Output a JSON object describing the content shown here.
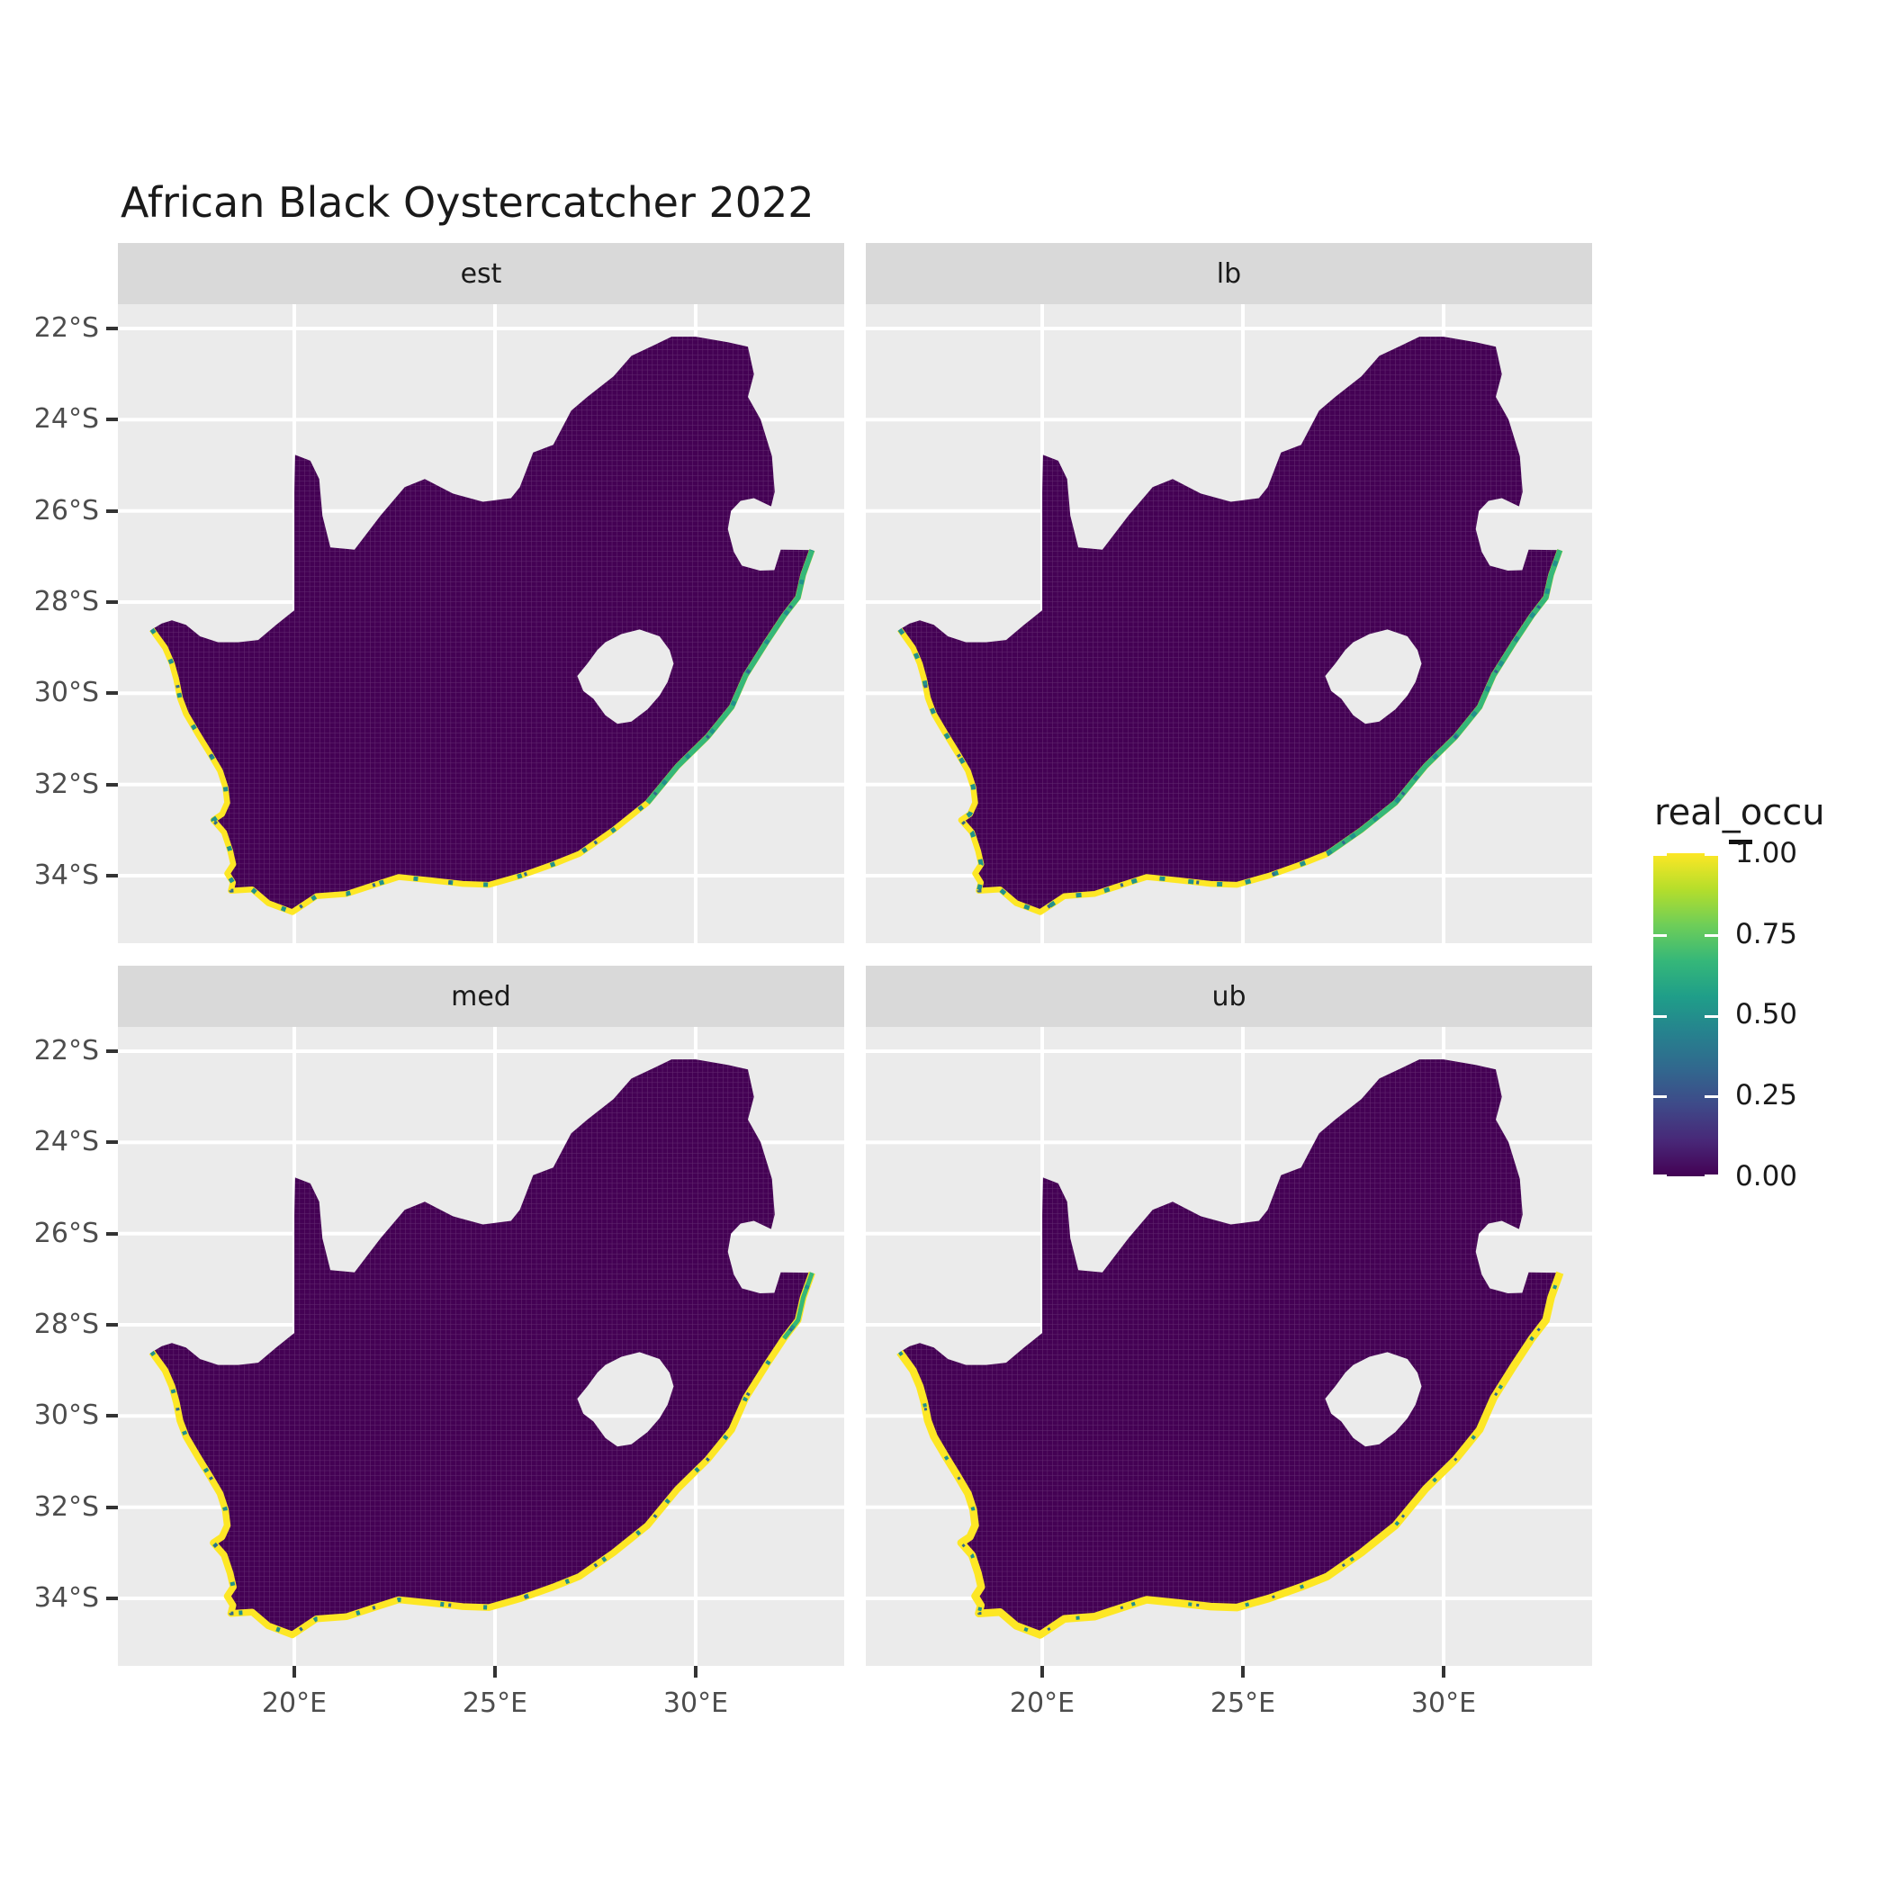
{
  "title": "African Black Oystercatcher 2022",
  "legend": {
    "title": "real_occu",
    "labels": [
      "1.00",
      "0.75",
      "0.50",
      "0.25",
      "0.00"
    ]
  },
  "colors": {
    "panel_bg": "#ebebeb",
    "strip_bg": "#d9d9d9",
    "gridline": "#ffffff",
    "axis_text": "#4d4d4d",
    "tick_mark": "#333333",
    "raster_zero": "#440154",
    "raster_max": "#fde725",
    "coast_green": "#35b779",
    "coast_teal": "#21918c",
    "coast_blue": "#31688e",
    "viridis_stops": [
      "#440154",
      "#482878",
      "#3e4a89",
      "#31688e",
      "#26828e",
      "#1f9e89",
      "#35b779",
      "#6ece58",
      "#b5de2b",
      "#fde725"
    ]
  },
  "chart_data": {
    "type": "heatmap",
    "title": "African Black Oystercatcher 2022",
    "facets": [
      "est",
      "lb",
      "med",
      "ub"
    ],
    "x_ticks": {
      "labels": [
        "20°E",
        "25°E",
        "30°E"
      ],
      "values": [
        20,
        25,
        30
      ]
    },
    "y_ticks": {
      "labels": [
        "22°S",
        "24°S",
        "26°S",
        "28°S",
        "30°S",
        "32°S",
        "34°S"
      ],
      "values": [
        22,
        24,
        26,
        28,
        30,
        32,
        34
      ]
    },
    "xlim_lon": [
      15.605,
      33.7
    ],
    "ylim_latS": [
      21.467,
      35.48
    ],
    "grid": true,
    "legend_position": "right",
    "legend_title": "real_occu",
    "legend_ticks": [
      1.0,
      0.75,
      0.5,
      0.25,
      0.0
    ],
    "colormap": "viridis",
    "value_summary": "Occupancy raster over South Africa: interior cells ~0.00 (dark purple); coastal cells high, up to 1.00 (yellow) with scattered 0.25-0.75 (blue/teal/green) cells; Lesotho and Eswatini are masked (no data).",
    "south_africa_outline": [
      [
        16.45,
        28.6
      ],
      [
        16.78,
        29.0
      ],
      [
        16.95,
        29.35
      ],
      [
        17.06,
        29.7
      ],
      [
        17.15,
        30.1
      ],
      [
        17.3,
        30.45
      ],
      [
        17.6,
        30.9
      ],
      [
        17.88,
        31.3
      ],
      [
        18.15,
        31.7
      ],
      [
        18.28,
        32.05
      ],
      [
        18.33,
        32.4
      ],
      [
        18.2,
        32.65
      ],
      [
        17.98,
        32.78
      ],
      [
        18.25,
        33.05
      ],
      [
        18.4,
        33.45
      ],
      [
        18.48,
        33.75
      ],
      [
        18.33,
        33.95
      ],
      [
        18.47,
        34.15
      ],
      [
        18.42,
        34.33
      ],
      [
        18.95,
        34.3
      ],
      [
        19.35,
        34.6
      ],
      [
        19.95,
        34.8
      ],
      [
        20.55,
        34.45
      ],
      [
        21.3,
        34.4
      ],
      [
        22.0,
        34.2
      ],
      [
        22.6,
        34.03
      ],
      [
        23.4,
        34.1
      ],
      [
        24.2,
        34.18
      ],
      [
        24.85,
        34.2
      ],
      [
        25.65,
        34.0
      ],
      [
        26.45,
        33.75
      ],
      [
        27.1,
        33.52
      ],
      [
        27.95,
        33.0
      ],
      [
        28.8,
        32.4
      ],
      [
        29.55,
        31.6
      ],
      [
        30.3,
        30.95
      ],
      [
        30.9,
        30.3
      ],
      [
        31.25,
        29.6
      ],
      [
        31.75,
        28.9
      ],
      [
        32.2,
        28.3
      ],
      [
        32.55,
        27.9
      ],
      [
        32.68,
        27.4
      ],
      [
        32.9,
        26.86
      ],
      [
        32.12,
        26.85
      ],
      [
        31.96,
        27.3
      ],
      [
        31.6,
        27.31
      ],
      [
        31.15,
        27.2
      ],
      [
        30.95,
        26.9
      ],
      [
        30.8,
        26.4
      ],
      [
        30.88,
        26.0
      ],
      [
        31.12,
        25.78
      ],
      [
        31.45,
        25.72
      ],
      [
        31.88,
        25.9
      ],
      [
        31.97,
        25.58
      ],
      [
        31.9,
        24.8
      ],
      [
        31.62,
        24.0
      ],
      [
        31.3,
        23.5
      ],
      [
        31.45,
        23.0
      ],
      [
        31.3,
        22.4
      ],
      [
        30.8,
        22.3
      ],
      [
        30.0,
        22.18
      ],
      [
        29.4,
        22.18
      ],
      [
        29.0,
        22.35
      ],
      [
        28.4,
        22.6
      ],
      [
        27.95,
        23.05
      ],
      [
        27.3,
        23.5
      ],
      [
        26.9,
        23.8
      ],
      [
        26.45,
        24.55
      ],
      [
        25.95,
        24.72
      ],
      [
        25.62,
        25.48
      ],
      [
        25.4,
        25.72
      ],
      [
        24.7,
        25.8
      ],
      [
        23.95,
        25.62
      ],
      [
        23.25,
        25.3
      ],
      [
        22.75,
        25.48
      ],
      [
        22.15,
        26.1
      ],
      [
        21.5,
        26.85
      ],
      [
        20.9,
        26.8
      ],
      [
        20.7,
        26.1
      ],
      [
        20.62,
        25.3
      ],
      [
        20.4,
        24.9
      ],
      [
        20.02,
        24.77
      ],
      [
        20.0,
        25.6
      ],
      [
        20.0,
        26.6
      ],
      [
        20.0,
        27.4
      ],
      [
        20.0,
        28.18
      ],
      [
        19.55,
        28.5
      ],
      [
        19.1,
        28.83
      ],
      [
        18.6,
        28.88
      ],
      [
        18.1,
        28.88
      ],
      [
        17.65,
        28.75
      ],
      [
        17.3,
        28.5
      ],
      [
        16.95,
        28.4
      ],
      [
        16.7,
        28.47
      ]
    ],
    "coast_end_index": 42,
    "lesotho_hole": [
      [
        27.05,
        29.62
      ],
      [
        27.3,
        29.35
      ],
      [
        27.55,
        29.05
      ],
      [
        27.75,
        28.88
      ],
      [
        28.15,
        28.7
      ],
      [
        28.6,
        28.6
      ],
      [
        29.1,
        28.75
      ],
      [
        29.35,
        29.05
      ],
      [
        29.45,
        29.35
      ],
      [
        29.3,
        29.75
      ],
      [
        29.1,
        30.05
      ],
      [
        28.8,
        30.35
      ],
      [
        28.4,
        30.62
      ],
      [
        28.05,
        30.67
      ],
      [
        27.75,
        30.48
      ],
      [
        27.45,
        30.12
      ],
      [
        27.2,
        29.95
      ]
    ],
    "facet_coast_styles": {
      "est": {
        "yellow_w": 6.5,
        "green_from": 33,
        "green_to": 42,
        "green_w": 6,
        "teal_dash": "5 34",
        "teal_w": 5
      },
      "lb": {
        "yellow_w": 6.5,
        "green_from": 31,
        "green_to": 42,
        "green_w": 6,
        "teal_dash": "6 26",
        "teal_w": 5
      },
      "med": {
        "yellow_w": 7.5,
        "green_from": 39,
        "green_to": 42,
        "green_w": 5,
        "teal_dash": "4 44",
        "teal_w": 5
      },
      "ub": {
        "yellow_w": 8.5,
        "green_from": -1,
        "green_to": -1,
        "green_w": 0,
        "teal_dash": "4 60",
        "teal_w": 4
      }
    }
  }
}
